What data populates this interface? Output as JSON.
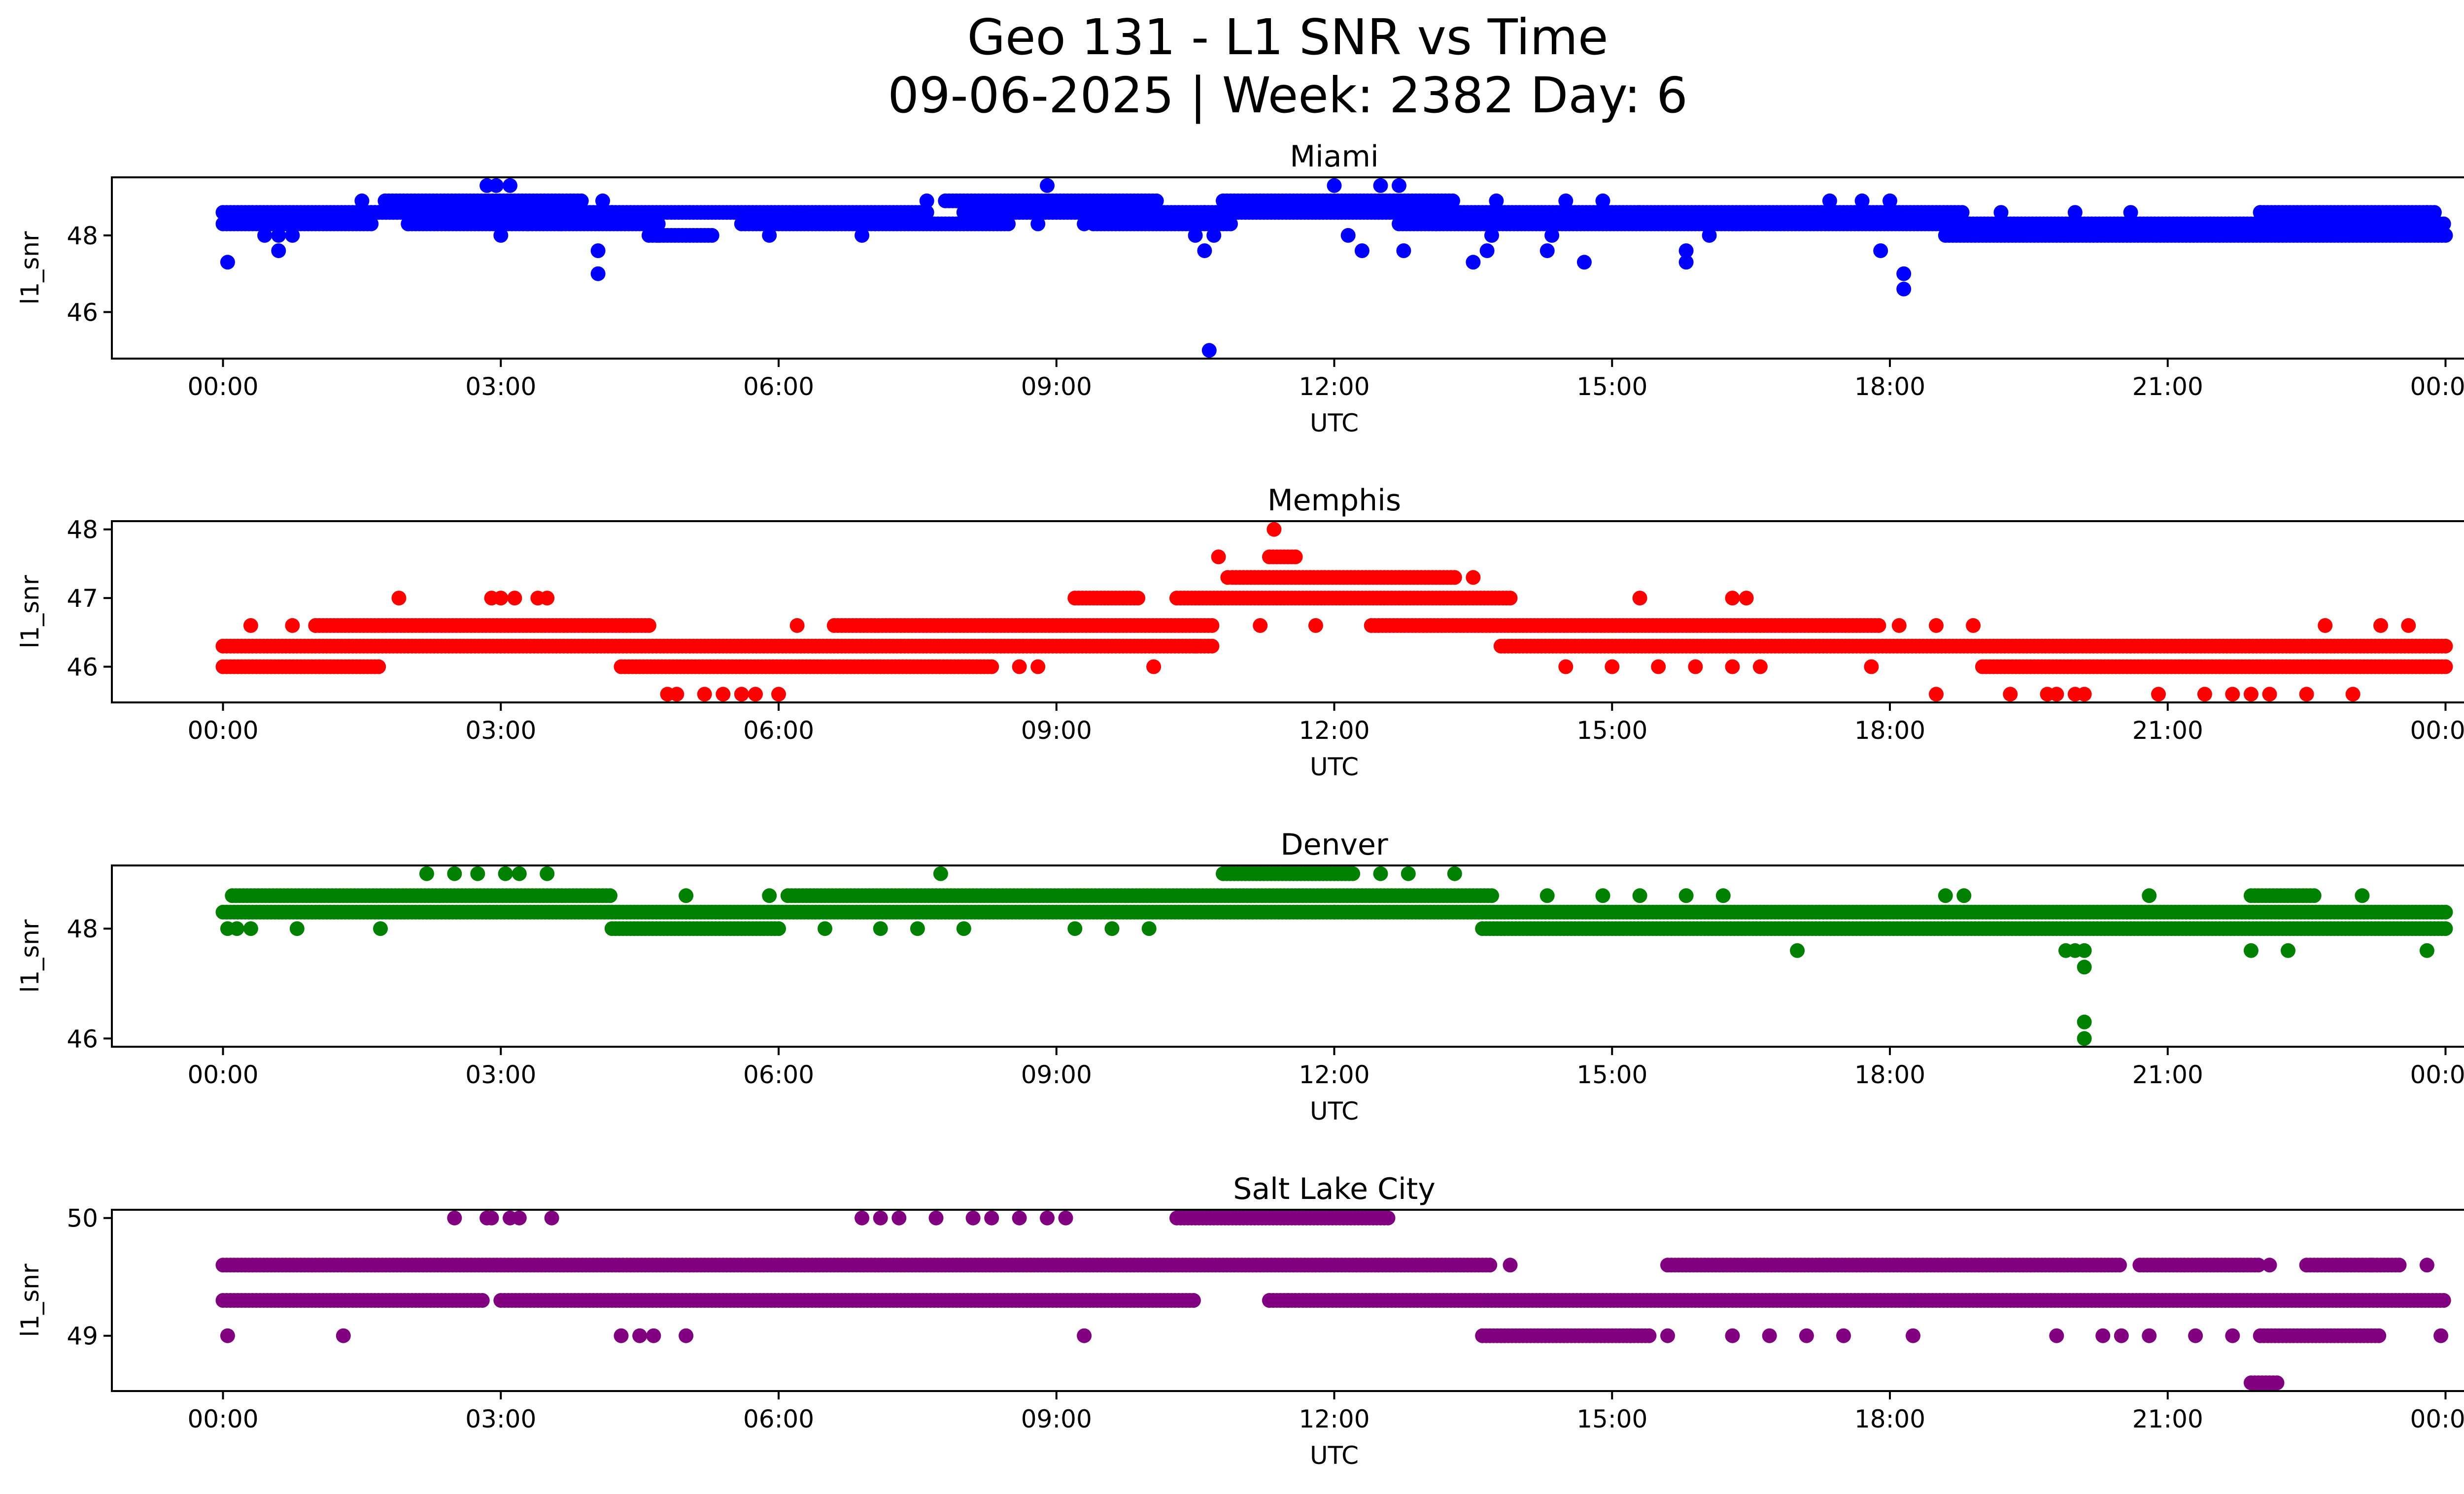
{
  "chart_data": {
    "type": "scatter",
    "title": "Geo 131 - L1 SNR vs Time",
    "subtitle": "09-06-2025 | Week: 2382 Day: 6",
    "xlabel": "UTC",
    "ylabel": "l1_snr",
    "x_unit": "hours UTC (0 = 00:00 of 09-06-2025, 24 = 00:00 next day)",
    "xlim": [
      -1.2,
      25.2
    ],
    "x_ticks": [
      0,
      3,
      6,
      9,
      12,
      15,
      18,
      21,
      24
    ],
    "x_tick_labels": [
      "00:00",
      "03:00",
      "06:00",
      "09:00",
      "12:00",
      "15:00",
      "18:00",
      "21:00",
      "00:00"
    ],
    "grid": false,
    "legend": "none",
    "panels": [
      {
        "name": "Miami",
        "color": "#0000ff",
        "ylim": [
          44.785,
          49.515
        ],
        "y_ticks": [
          46,
          48
        ],
        "y_tick_labels": [
          "46",
          "48"
        ],
        "segments": [
          {
            "from": 0.0,
            "to": 1.9,
            "y": 48.6
          },
          {
            "from": 0.0,
            "to": 1.6,
            "y": 48.3
          },
          {
            "from": 1.6,
            "to": 4.2,
            "y": 48.6
          },
          {
            "from": 1.75,
            "to": 3.9,
            "y": 48.9
          },
          {
            "from": 2.0,
            "to": 3.3,
            "y": 48.3
          },
          {
            "from": 3.3,
            "to": 4.7,
            "y": 48.3
          },
          {
            "from": 4.2,
            "to": 7.6,
            "y": 48.6
          },
          {
            "from": 4.6,
            "to": 5.3,
            "y": 48.0
          },
          {
            "from": 5.6,
            "to": 8.5,
            "y": 48.3
          },
          {
            "from": 7.8,
            "to": 10.1,
            "y": 48.9
          },
          {
            "from": 8.0,
            "to": 10.6,
            "y": 48.6
          },
          {
            "from": 9.4,
            "to": 10.9,
            "y": 48.3
          },
          {
            "from": 10.8,
            "to": 13.3,
            "y": 48.9
          },
          {
            "from": 10.6,
            "to": 15.3,
            "y": 48.6
          },
          {
            "from": 12.7,
            "to": 16.4,
            "y": 48.3
          },
          {
            "from": 15.3,
            "to": 18.8,
            "y": 48.6
          },
          {
            "from": 16.3,
            "to": 24.0,
            "y": 48.3
          },
          {
            "from": 18.6,
            "to": 24.0,
            "y": 48.0
          },
          {
            "from": 22.0,
            "to": 23.9,
            "y": 48.6
          }
        ],
        "points": [
          [
            0.05,
            47.3
          ],
          [
            0.45,
            48.0
          ],
          [
            0.6,
            47.6
          ],
          [
            0.6,
            48.0
          ],
          [
            0.75,
            48.0
          ],
          [
            1.5,
            48.9
          ],
          [
            2.0,
            48.3
          ],
          [
            2.85,
            49.3
          ],
          [
            2.95,
            49.3
          ],
          [
            3.0,
            48.0
          ],
          [
            3.1,
            49.3
          ],
          [
            3.65,
            48.3
          ],
          [
            4.05,
            47.6
          ],
          [
            4.05,
            47.0
          ],
          [
            4.1,
            48.9
          ],
          [
            4.7,
            48.0
          ],
          [
            5.9,
            48.0
          ],
          [
            6.9,
            48.0
          ],
          [
            7.6,
            48.9
          ],
          [
            8.8,
            48.3
          ],
          [
            8.9,
            49.3
          ],
          [
            9.3,
            48.3
          ],
          [
            10.5,
            48.0
          ],
          [
            10.6,
            47.6
          ],
          [
            10.65,
            45.0
          ],
          [
            10.7,
            48.0
          ],
          [
            12.0,
            49.3
          ],
          [
            12.15,
            48.0
          ],
          [
            12.3,
            47.6
          ],
          [
            12.5,
            49.3
          ],
          [
            12.7,
            49.3
          ],
          [
            12.75,
            47.6
          ],
          [
            13.1,
            48.3
          ],
          [
            13.5,
            47.3
          ],
          [
            13.65,
            47.6
          ],
          [
            13.7,
            48.0
          ],
          [
            13.75,
            48.9
          ],
          [
            14.3,
            47.6
          ],
          [
            14.35,
            48.0
          ],
          [
            14.5,
            48.9
          ],
          [
            14.7,
            47.3
          ],
          [
            14.9,
            48.9
          ],
          [
            15.8,
            47.6
          ],
          [
            15.8,
            47.3
          ],
          [
            16.05,
            48.0
          ],
          [
            17.35,
            48.9
          ],
          [
            17.7,
            48.9
          ],
          [
            17.9,
            47.6
          ],
          [
            18.0,
            48.9
          ],
          [
            18.15,
            47.0
          ],
          [
            18.15,
            46.6
          ],
          [
            19.2,
            48.6
          ],
          [
            20.0,
            48.6
          ],
          [
            20.6,
            48.6
          ],
          [
            22.0,
            48.6
          ],
          [
            23.8,
            48.6
          ]
        ]
      },
      {
        "name": "Memphis",
        "color": "#ff0000",
        "ylim": [
          45.48,
          48.12
        ],
        "y_ticks": [
          46,
          47,
          48
        ],
        "y_tick_labels": [
          "46",
          "47",
          "48"
        ],
        "segments": [
          {
            "from": 0.0,
            "to": 1.7,
            "y": 46.0
          },
          {
            "from": 0.0,
            "to": 10.7,
            "y": 46.3
          },
          {
            "from": 1.0,
            "to": 4.6,
            "y": 46.6
          },
          {
            "from": 4.3,
            "to": 8.3,
            "y": 46.0
          },
          {
            "from": 6.6,
            "to": 10.7,
            "y": 46.6
          },
          {
            "from": 9.2,
            "to": 9.9,
            "y": 47.0
          },
          {
            "from": 10.3,
            "to": 13.9,
            "y": 47.0
          },
          {
            "from": 10.9,
            "to": 13.3,
            "y": 47.3
          },
          {
            "from": 11.3,
            "to": 11.6,
            "y": 47.6
          },
          {
            "from": 12.4,
            "to": 17.9,
            "y": 46.6
          },
          {
            "from": 13.8,
            "to": 24.0,
            "y": 46.3
          },
          {
            "from": 19.0,
            "to": 24.0,
            "y": 46.0
          }
        ],
        "points": [
          [
            0.3,
            46.6
          ],
          [
            0.75,
            46.6
          ],
          [
            1.0,
            46.6
          ],
          [
            1.9,
            47.0
          ],
          [
            2.9,
            47.0
          ],
          [
            3.0,
            47.0
          ],
          [
            3.15,
            47.0
          ],
          [
            3.4,
            47.0
          ],
          [
            3.5,
            47.0
          ],
          [
            4.8,
            45.6
          ],
          [
            4.9,
            45.6
          ],
          [
            5.2,
            45.6
          ],
          [
            5.4,
            45.6
          ],
          [
            5.6,
            45.6
          ],
          [
            5.75,
            45.6
          ],
          [
            6.0,
            45.6
          ],
          [
            6.2,
            46.6
          ],
          [
            8.6,
            46.0
          ],
          [
            8.8,
            46.0
          ],
          [
            10.05,
            46.0
          ],
          [
            10.5,
            46.3
          ],
          [
            10.85,
            47.3
          ],
          [
            10.75,
            47.6
          ],
          [
            11.35,
            48.0
          ],
          [
            11.2,
            46.6
          ],
          [
            11.8,
            46.6
          ],
          [
            13.5,
            47.3
          ],
          [
            14.5,
            46.0
          ],
          [
            15.0,
            46.0
          ],
          [
            15.3,
            47.0
          ],
          [
            15.5,
            46.0
          ],
          [
            15.9,
            46.0
          ],
          [
            16.3,
            47.0
          ],
          [
            16.45,
            47.0
          ],
          [
            16.3,
            46.0
          ],
          [
            16.6,
            46.0
          ],
          [
            17.8,
            46.0
          ],
          [
            18.1,
            46.6
          ],
          [
            18.5,
            46.6
          ],
          [
            18.9,
            46.6
          ],
          [
            18.5,
            45.6
          ],
          [
            19.3,
            45.6
          ],
          [
            19.7,
            45.6
          ],
          [
            19.8,
            45.6
          ],
          [
            20.0,
            45.6
          ],
          [
            20.1,
            45.6
          ],
          [
            20.9,
            45.6
          ],
          [
            21.4,
            45.6
          ],
          [
            21.7,
            45.6
          ],
          [
            21.9,
            45.6
          ],
          [
            22.1,
            45.6
          ],
          [
            22.5,
            45.6
          ],
          [
            23.0,
            45.6
          ],
          [
            22.7,
            46.6
          ],
          [
            23.3,
            46.6
          ],
          [
            23.6,
            46.6
          ]
        ]
      },
      {
        "name": "Denver",
        "color": "#008000",
        "ylim": [
          45.85,
          49.15
        ],
        "y_ticks": [
          46,
          48
        ],
        "y_tick_labels": [
          "46",
          "48"
        ],
        "segments": [
          {
            "from": 0.0,
            "to": 24.0,
            "y": 48.3
          },
          {
            "from": 0.1,
            "to": 4.2,
            "y": 48.6
          },
          {
            "from": 4.2,
            "to": 6.0,
            "y": 48.0
          },
          {
            "from": 6.1,
            "to": 13.7,
            "y": 48.6
          },
          {
            "from": 10.8,
            "to": 12.2,
            "y": 49.0
          },
          {
            "from": 13.6,
            "to": 24.0,
            "y": 48.0
          },
          {
            "from": 21.9,
            "to": 22.6,
            "y": 48.6
          }
        ],
        "points": [
          [
            0.05,
            48.0
          ],
          [
            0.15,
            48.0
          ],
          [
            0.3,
            48.0
          ],
          [
            0.8,
            48.0
          ],
          [
            1.7,
            48.0
          ],
          [
            2.2,
            49.0
          ],
          [
            2.5,
            49.0
          ],
          [
            2.75,
            49.0
          ],
          [
            3.05,
            49.0
          ],
          [
            3.2,
            49.0
          ],
          [
            3.5,
            49.0
          ],
          [
            5.0,
            48.6
          ],
          [
            5.9,
            48.6
          ],
          [
            6.5,
            48.0
          ],
          [
            7.1,
            48.0
          ],
          [
            7.5,
            48.0
          ],
          [
            7.75,
            49.0
          ],
          [
            8.0,
            48.0
          ],
          [
            9.2,
            48.0
          ],
          [
            9.6,
            48.0
          ],
          [
            10.0,
            48.0
          ],
          [
            12.5,
            49.0
          ],
          [
            12.8,
            49.0
          ],
          [
            13.3,
            49.0
          ],
          [
            12.0,
            48.3
          ],
          [
            14.3,
            48.6
          ],
          [
            14.9,
            48.6
          ],
          [
            15.3,
            48.6
          ],
          [
            15.8,
            48.6
          ],
          [
            16.2,
            48.6
          ],
          [
            17.0,
            47.6
          ],
          [
            18.6,
            48.6
          ],
          [
            18.8,
            48.6
          ],
          [
            19.9,
            47.6
          ],
          [
            20.0,
            47.6
          ],
          [
            20.1,
            47.6
          ],
          [
            20.1,
            47.3
          ],
          [
            20.1,
            46.3
          ],
          [
            20.1,
            46.0
          ],
          [
            20.8,
            48.6
          ],
          [
            21.9,
            47.6
          ],
          [
            22.3,
            47.6
          ],
          [
            23.1,
            48.6
          ],
          [
            23.8,
            47.6
          ]
        ]
      },
      {
        "name": "Salt Lake City",
        "color": "#800080",
        "ylim": [
          48.53,
          50.07
        ],
        "y_ticks": [
          49,
          50
        ],
        "y_tick_labels": [
          "49",
          "50"
        ],
        "segments": [
          {
            "from": 0.0,
            "to": 13.7,
            "y": 49.6
          },
          {
            "from": 0.0,
            "to": 2.8,
            "y": 49.3
          },
          {
            "from": 3.0,
            "to": 10.5,
            "y": 49.3
          },
          {
            "from": 10.3,
            "to": 12.6,
            "y": 50.0
          },
          {
            "from": 11.3,
            "to": 24.0,
            "y": 49.3
          },
          {
            "from": 13.6,
            "to": 15.4,
            "y": 49.0
          },
          {
            "from": 15.6,
            "to": 20.5,
            "y": 49.6
          },
          {
            "from": 20.7,
            "to": 22.0,
            "y": 49.6
          },
          {
            "from": 22.0,
            "to": 23.3,
            "y": 49.0
          },
          {
            "from": 22.5,
            "to": 23.5,
            "y": 49.6
          },
          {
            "from": 21.9,
            "to": 22.2,
            "y": 48.6
          }
        ],
        "points": [
          [
            0.05,
            49.0
          ],
          [
            1.3,
            49.0
          ],
          [
            2.5,
            50.0
          ],
          [
            2.85,
            50.0
          ],
          [
            2.9,
            50.0
          ],
          [
            3.1,
            50.0
          ],
          [
            3.2,
            50.0
          ],
          [
            3.55,
            50.0
          ],
          [
            4.3,
            49.0
          ],
          [
            4.5,
            49.0
          ],
          [
            4.65,
            49.0
          ],
          [
            5.0,
            49.0
          ],
          [
            6.9,
            50.0
          ],
          [
            7.1,
            50.0
          ],
          [
            7.3,
            50.0
          ],
          [
            7.7,
            50.0
          ],
          [
            8.1,
            50.0
          ],
          [
            8.3,
            50.0
          ],
          [
            8.6,
            50.0
          ],
          [
            8.9,
            50.0
          ],
          [
            9.1,
            50.0
          ],
          [
            9.3,
            49.0
          ],
          [
            11.5,
            49.3
          ],
          [
            11.3,
            49.3
          ],
          [
            13.9,
            49.6
          ],
          [
            15.2,
            49.0
          ],
          [
            15.6,
            49.0
          ],
          [
            16.3,
            49.0
          ],
          [
            16.7,
            49.0
          ],
          [
            17.1,
            49.0
          ],
          [
            17.5,
            49.0
          ],
          [
            18.25,
            49.0
          ],
          [
            19.8,
            49.0
          ],
          [
            20.3,
            49.0
          ],
          [
            20.5,
            49.0
          ],
          [
            20.8,
            49.0
          ],
          [
            21.3,
            49.0
          ],
          [
            21.7,
            49.0
          ],
          [
            22.1,
            49.6
          ],
          [
            23.2,
            49.6
          ],
          [
            23.8,
            49.6
          ],
          [
            23.95,
            49.0
          ]
        ]
      }
    ]
  }
}
